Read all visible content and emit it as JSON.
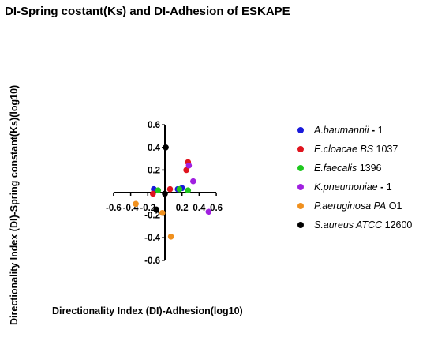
{
  "chart_data": {
    "type": "scatter",
    "title": "DI-Spring costant(Ks) and DI-Adhesion of ESKAPE",
    "xlabel": "Directionality Index (DI)-Adhesion(log10)",
    "ylabel": "Directionality Index (DI)-Spring constant(Ks)(log10)",
    "xlim": [
      -0.6,
      0.6
    ],
    "ylim": [
      -0.6,
      0.6
    ],
    "x_ticks": [
      "-0.6",
      "-0.4",
      "-0.2",
      "0.2",
      "0.4",
      "0.6"
    ],
    "y_ticks": [
      "0.6",
      "0.4",
      "0.2",
      "-0.2",
      "-0.4",
      "-0.6"
    ],
    "x_tick_values": [
      -0.6,
      -0.4,
      -0.2,
      0.2,
      0.4,
      0.6
    ],
    "y_tick_values": [
      0.6,
      0.4,
      0.2,
      -0.2,
      -0.4,
      -0.6
    ],
    "grid": false,
    "legend_position": "right",
    "series": [
      {
        "name_italic": "A.baumannii",
        "name_sep": " - ",
        "name_rest": "1",
        "color": "#1a1adb",
        "points": [
          [
            -0.13,
            0.03
          ],
          [
            0.15,
            0.03
          ],
          [
            0.2,
            0.04
          ]
        ]
      },
      {
        "name_italic": "E.cloacae BS",
        "name_sep": " ",
        "name_rest": "1037",
        "color": "#e0141e",
        "points": [
          [
            -0.14,
            -0.01
          ],
          [
            0.06,
            0.03
          ],
          [
            0.25,
            0.2
          ],
          [
            0.27,
            0.27
          ]
        ]
      },
      {
        "name_italic": "E.faecalis",
        "name_sep": " ",
        "name_rest": "1396",
        "color": "#1ec81e",
        "points": [
          [
            -0.08,
            0.02
          ],
          [
            0.17,
            0.03
          ],
          [
            0.27,
            0.02
          ]
        ]
      },
      {
        "name_italic": "K.pneumoniae",
        "name_sep": " - ",
        "name_rest": "1",
        "color": "#a020e0",
        "points": [
          [
            0.28,
            0.24
          ],
          [
            0.33,
            0.1
          ],
          [
            0.51,
            -0.17
          ]
        ]
      },
      {
        "name_italic": "P.aeruginosa PA",
        "name_sep": " ",
        "name_rest": "O1",
        "color": "#f0901e",
        "points": [
          [
            -0.34,
            -0.1
          ],
          [
            -0.03,
            -0.18
          ],
          [
            0.07,
            -0.39
          ]
        ]
      },
      {
        "name_italic": "S.aureus ATCC",
        "name_sep": " ",
        "name_rest": "12600",
        "color": "#000000",
        "points": [
          [
            0.01,
            0.4
          ],
          [
            -0.1,
            -0.15
          ],
          [
            0.0,
            -0.01
          ]
        ]
      }
    ]
  }
}
